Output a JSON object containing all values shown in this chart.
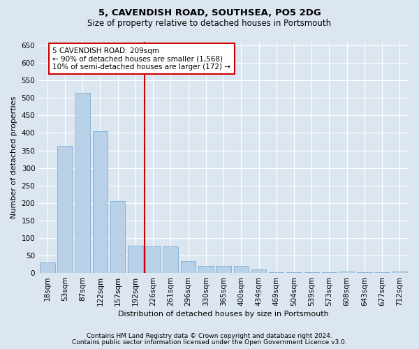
{
  "title": "5, CAVENDISH ROAD, SOUTHSEA, PO5 2DG",
  "subtitle": "Size of property relative to detached houses in Portsmouth",
  "xlabel": "Distribution of detached houses by size in Portsmouth",
  "ylabel": "Number of detached properties",
  "categories": [
    "18sqm",
    "53sqm",
    "87sqm",
    "122sqm",
    "157sqm",
    "192sqm",
    "226sqm",
    "261sqm",
    "296sqm",
    "330sqm",
    "365sqm",
    "400sqm",
    "434sqm",
    "469sqm",
    "504sqm",
    "539sqm",
    "573sqm",
    "608sqm",
    "643sqm",
    "677sqm",
    "712sqm"
  ],
  "values": [
    30,
    362,
    515,
    405,
    205,
    78,
    75,
    75,
    35,
    20,
    20,
    20,
    10,
    2,
    2,
    2,
    2,
    5,
    2,
    2,
    5
  ],
  "bar_color": "#b8d0e8",
  "bar_edge_color": "#7aafd4",
  "marker_line_color": "#cc0000",
  "annotation_line1": "5 CAVENDISH ROAD: 209sqm",
  "annotation_line2": "← 90% of detached houses are smaller (1,568)",
  "annotation_line3": "10% of semi-detached houses are larger (172) →",
  "annotation_box_color": "#ffffff",
  "annotation_box_edge": "#cc0000",
  "ylim": [
    0,
    660
  ],
  "yticks": [
    0,
    50,
    100,
    150,
    200,
    250,
    300,
    350,
    400,
    450,
    500,
    550,
    600,
    650
  ],
  "footnote1": "Contains HM Land Registry data © Crown copyright and database right 2024.",
  "footnote2": "Contains public sector information licensed under the Open Government Licence v3.0.",
  "bg_color": "#dce6f0",
  "plot_bg_color": "#dce6f0",
  "title_fontsize": 9.5,
  "subtitle_fontsize": 8.5,
  "axis_label_fontsize": 8,
  "tick_fontsize": 7.5,
  "annotation_fontsize": 7.5,
  "footnote_fontsize": 6.5
}
